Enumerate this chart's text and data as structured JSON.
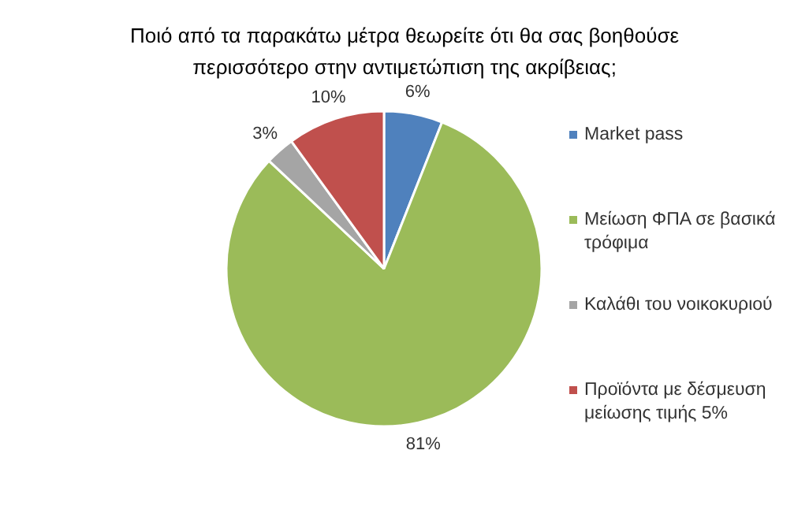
{
  "chart_data": {
    "type": "pie",
    "title": "Ποιό από τα παρακάτω μέτρα θεωρείτε ότι θα σας βοηθούσε περισσότερο στην αντιμετώπιση της ακρίβειας;",
    "categories": [
      "Market pass",
      "Μείωση ΦΠΑ σε βασικά τρόφιμα",
      "Καλάθι του νοικοκυριού",
      "Προϊόντα με δέσμευση μείωσης τιμής 5%"
    ],
    "values": [
      6,
      81,
      3,
      10
    ],
    "colors": [
      "#4f81bd",
      "#9bbb59",
      "#a5a5a5",
      "#c0504d"
    ],
    "value_labels": [
      "6%",
      "81%",
      "3%",
      "10%"
    ],
    "legend": "right"
  }
}
